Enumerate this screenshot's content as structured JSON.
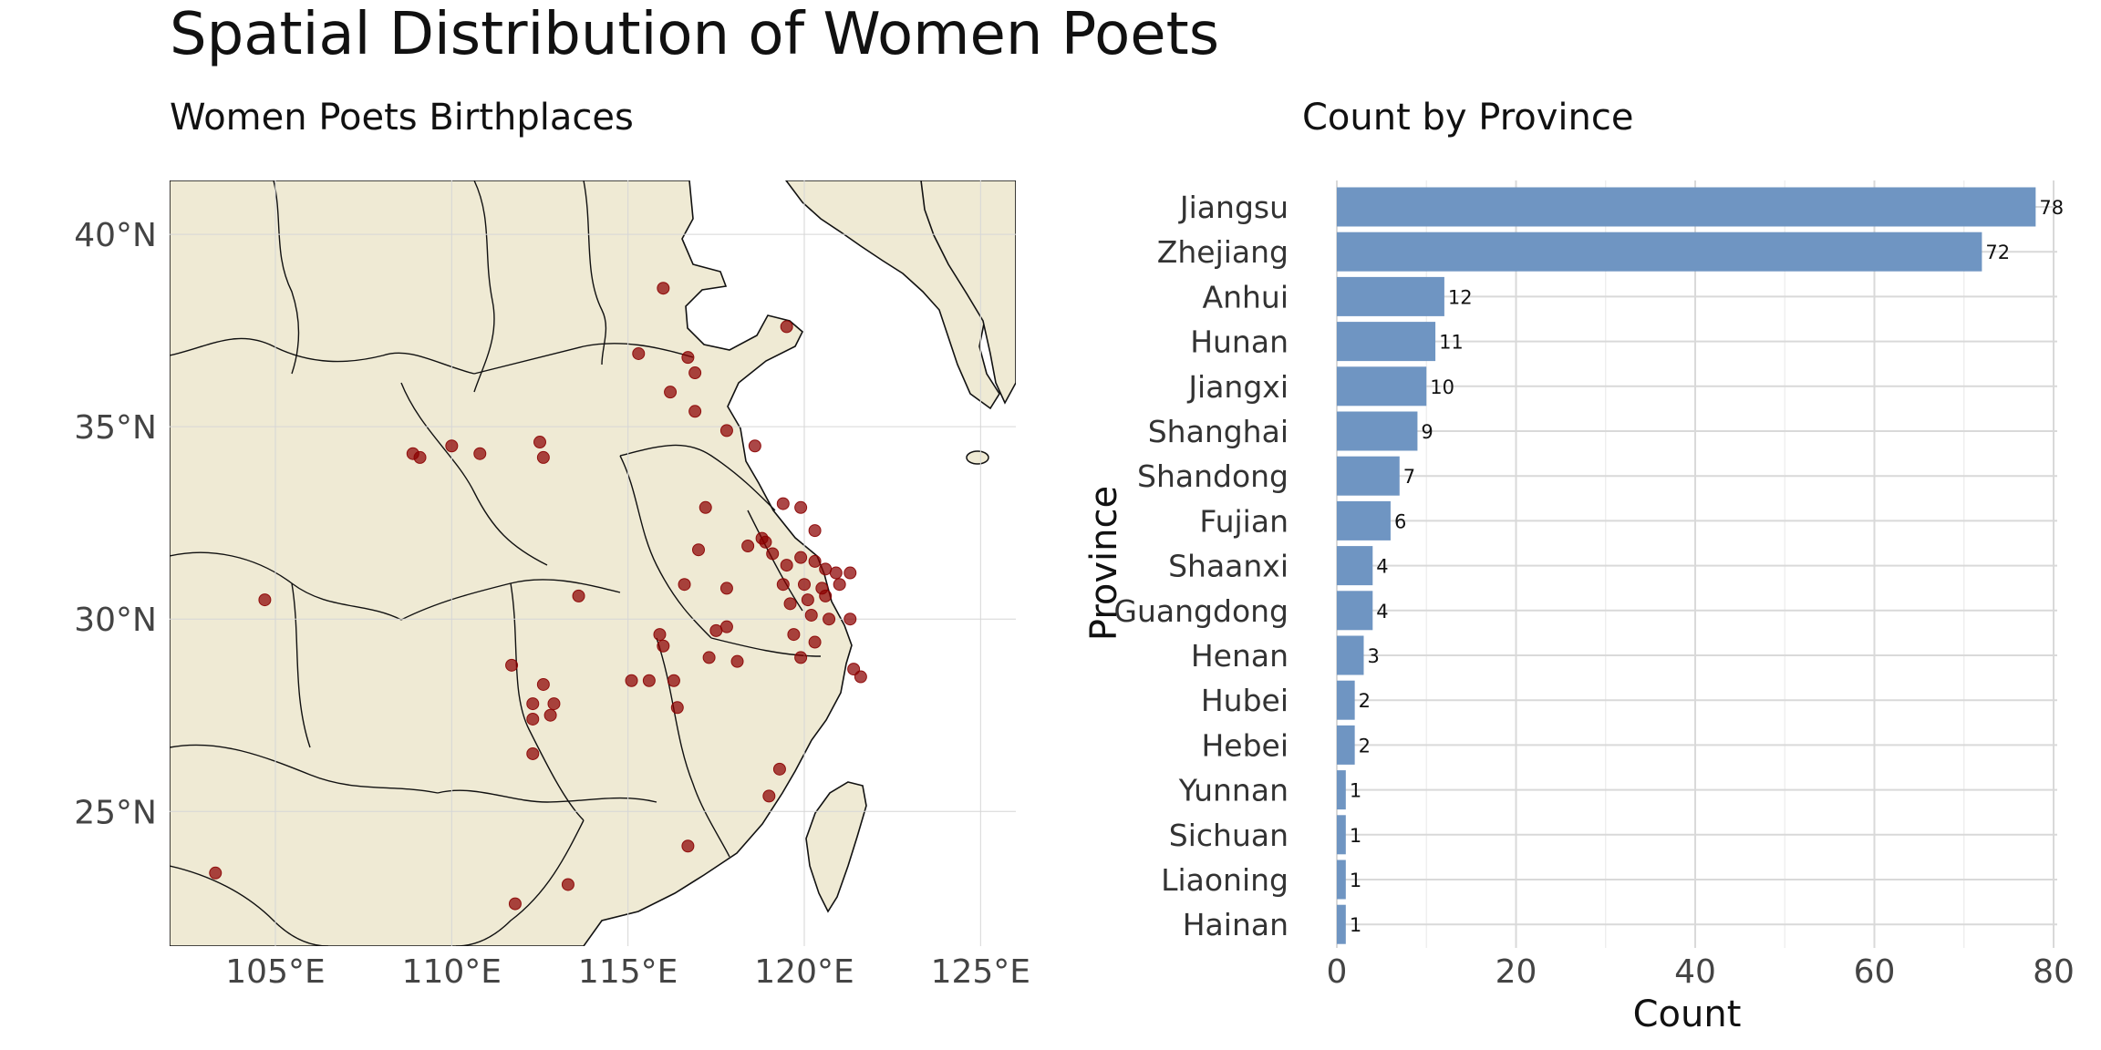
{
  "page": {
    "title": "Spatial Distribution of Women Poets"
  },
  "chart_data": [
    {
      "type": "scatter",
      "title": "Women Poets Birthplaces",
      "xlabel": "",
      "ylabel": "",
      "xlim": [
        102,
        126
      ],
      "ylim": [
        21.5,
        41.4
      ],
      "x_ticks": [
        {
          "value": 105,
          "label": "105°E"
        },
        {
          "value": 110,
          "label": "110°E"
        },
        {
          "value": 115,
          "label": "115°E"
        },
        {
          "value": 120,
          "label": "120°E"
        },
        {
          "value": 125,
          "label": "125°E"
        }
      ],
      "y_ticks": [
        {
          "value": 40,
          "label": "40°N"
        },
        {
          "value": 35,
          "label": "35°N"
        },
        {
          "value": 30,
          "label": "30°N"
        },
        {
          "value": 25,
          "label": "25°N"
        }
      ],
      "grid": true,
      "land_color": "#efead4",
      "point_color": "#8b0000",
      "points": [
        {
          "lon": 116.0,
          "lat": 38.6
        },
        {
          "lon": 119.5,
          "lat": 37.6
        },
        {
          "lon": 115.3,
          "lat": 36.9
        },
        {
          "lon": 116.7,
          "lat": 36.8
        },
        {
          "lon": 116.9,
          "lat": 36.4
        },
        {
          "lon": 116.2,
          "lat": 35.9
        },
        {
          "lon": 116.9,
          "lat": 35.4
        },
        {
          "lon": 117.8,
          "lat": 34.9
        },
        {
          "lon": 118.6,
          "lat": 34.5
        },
        {
          "lon": 108.9,
          "lat": 34.3
        },
        {
          "lon": 109.1,
          "lat": 34.2
        },
        {
          "lon": 110.0,
          "lat": 34.5
        },
        {
          "lon": 110.8,
          "lat": 34.3
        },
        {
          "lon": 112.5,
          "lat": 34.6
        },
        {
          "lon": 112.6,
          "lat": 34.2
        },
        {
          "lon": 117.2,
          "lat": 32.9
        },
        {
          "lon": 118.8,
          "lat": 32.1
        },
        {
          "lon": 119.4,
          "lat": 33.0
        },
        {
          "lon": 119.9,
          "lat": 32.9
        },
        {
          "lon": 120.3,
          "lat": 32.3
        },
        {
          "lon": 118.4,
          "lat": 31.9
        },
        {
          "lon": 118.9,
          "lat": 32.0
        },
        {
          "lon": 119.1,
          "lat": 31.7
        },
        {
          "lon": 119.5,
          "lat": 31.4
        },
        {
          "lon": 119.9,
          "lat": 31.6
        },
        {
          "lon": 120.3,
          "lat": 31.5
        },
        {
          "lon": 120.6,
          "lat": 31.3
        },
        {
          "lon": 120.9,
          "lat": 31.2
        },
        {
          "lon": 121.3,
          "lat": 31.2
        },
        {
          "lon": 121.0,
          "lat": 30.9
        },
        {
          "lon": 120.5,
          "lat": 30.8
        },
        {
          "lon": 120.1,
          "lat": 30.5
        },
        {
          "lon": 120.6,
          "lat": 30.6
        },
        {
          "lon": 120.0,
          "lat": 30.9
        },
        {
          "lon": 119.4,
          "lat": 30.9
        },
        {
          "lon": 119.6,
          "lat": 30.4
        },
        {
          "lon": 120.2,
          "lat": 30.1
        },
        {
          "lon": 120.7,
          "lat": 30.0
        },
        {
          "lon": 121.3,
          "lat": 30.0
        },
        {
          "lon": 119.7,
          "lat": 29.6
        },
        {
          "lon": 120.3,
          "lat": 29.4
        },
        {
          "lon": 119.9,
          "lat": 29.0
        },
        {
          "lon": 121.4,
          "lat": 28.7
        },
        {
          "lon": 121.6,
          "lat": 28.5
        },
        {
          "lon": 117.0,
          "lat": 31.8
        },
        {
          "lon": 116.6,
          "lat": 30.9
        },
        {
          "lon": 117.8,
          "lat": 30.8
        },
        {
          "lon": 117.8,
          "lat": 29.8
        },
        {
          "lon": 117.5,
          "lat": 29.7
        },
        {
          "lon": 117.3,
          "lat": 29.0
        },
        {
          "lon": 118.1,
          "lat": 28.9
        },
        {
          "lon": 115.9,
          "lat": 29.6
        },
        {
          "lon": 116.0,
          "lat": 29.3
        },
        {
          "lon": 115.1,
          "lat": 28.4
        },
        {
          "lon": 115.6,
          "lat": 28.4
        },
        {
          "lon": 116.3,
          "lat": 28.4
        },
        {
          "lon": 116.4,
          "lat": 27.7
        },
        {
          "lon": 113.6,
          "lat": 30.6
        },
        {
          "lon": 111.7,
          "lat": 28.8
        },
        {
          "lon": 112.6,
          "lat": 28.3
        },
        {
          "lon": 112.3,
          "lat": 27.8
        },
        {
          "lon": 112.9,
          "lat": 27.8
        },
        {
          "lon": 112.3,
          "lat": 27.4
        },
        {
          "lon": 112.8,
          "lat": 27.5
        },
        {
          "lon": 112.3,
          "lat": 26.5
        },
        {
          "lon": 119.3,
          "lat": 26.1
        },
        {
          "lon": 119.0,
          "lat": 25.4
        },
        {
          "lon": 116.7,
          "lat": 24.1
        },
        {
          "lon": 113.3,
          "lat": 23.1
        },
        {
          "lon": 111.8,
          "lat": 22.6
        },
        {
          "lon": 103.3,
          "lat": 23.4
        },
        {
          "lon": 104.7,
          "lat": 30.5
        }
      ]
    },
    {
      "type": "bar",
      "orientation": "horizontal",
      "title": "Count by Province",
      "xlabel": "Count",
      "ylabel": "Province",
      "xlim": [
        0,
        80
      ],
      "x_ticks": [
        0,
        20,
        40,
        60,
        80
      ],
      "grid": true,
      "bar_color": "#6f95c2",
      "categories": [
        "Jiangsu",
        "Zhejiang",
        "Anhui",
        "Hunan",
        "Jiangxi",
        "Shanghai",
        "Shandong",
        "Fujian",
        "Shaanxi",
        "Guangdong",
        "Henan",
        "Hubei",
        "Hebei",
        "Yunnan",
        "Sichuan",
        "Liaoning",
        "Hainan"
      ],
      "values": [
        78,
        72,
        12,
        11,
        10,
        9,
        7,
        6,
        4,
        4,
        3,
        2,
        2,
        1,
        1,
        1,
        1
      ]
    }
  ]
}
